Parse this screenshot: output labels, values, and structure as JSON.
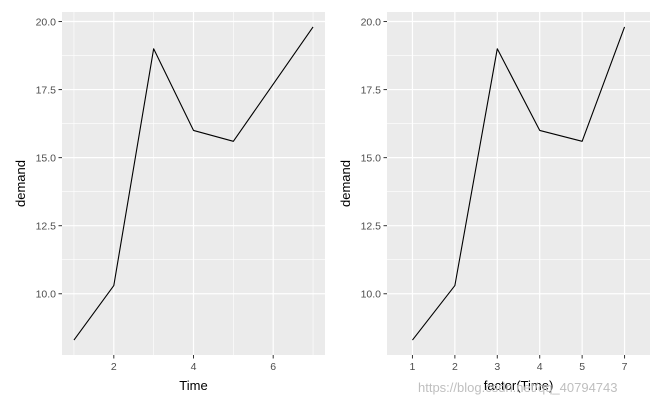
{
  "chart_data": [
    {
      "type": "line",
      "xlabel": "Time",
      "ylabel": "demand",
      "x": [
        1,
        2,
        3,
        4,
        5,
        6,
        7
      ],
      "series": [
        {
          "values": [
            8.3,
            10.3,
            19.0,
            16.0,
            15.6,
            17.7,
            19.8
          ]
        }
      ],
      "xlim": [
        0.7,
        7.3
      ],
      "ylim": [
        7.75,
        20.35
      ],
      "xticks": [
        2,
        4,
        6
      ],
      "xtick_labels": [
        "2",
        "4",
        "6"
      ],
      "yticks": [
        10,
        12.5,
        15,
        17.5,
        20
      ],
      "ytick_labels": [
        "10.0",
        "12.5",
        "15.0",
        "17.5",
        "20.0"
      ],
      "grid": true,
      "line_color": "#000000",
      "panel_color": "#ebebeb",
      "grid_color": "#ffffff"
    },
    {
      "type": "line",
      "xlabel": "factor(Time)",
      "ylabel": "demand",
      "categories": [
        "1",
        "2",
        "3",
        "4",
        "5",
        "7"
      ],
      "series": [
        {
          "values": [
            8.3,
            10.3,
            19.0,
            16.0,
            15.6,
            19.8
          ]
        }
      ],
      "ylim": [
        7.75,
        20.35
      ],
      "yticks": [
        10,
        12.5,
        15,
        17.5,
        20
      ],
      "ytick_labels": [
        "10.0",
        "12.5",
        "15.0",
        "17.5",
        "20.0"
      ],
      "grid": true,
      "line_color": "#000000",
      "panel_color": "#ebebeb",
      "grid_color": "#ffffff"
    }
  ],
  "watermark": "https://blog.csdn.net/qq_40794743"
}
